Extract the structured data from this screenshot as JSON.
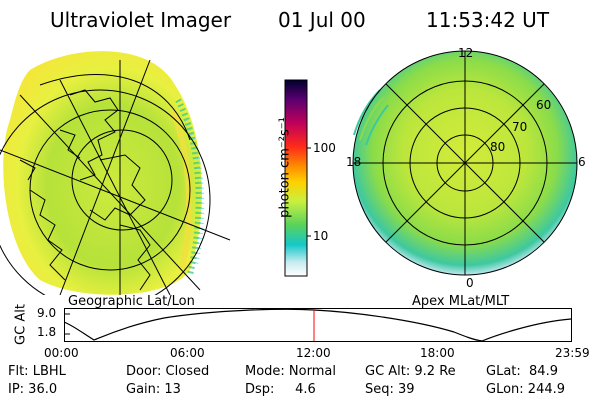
{
  "header": {
    "title": "Ultraviolet Imager",
    "date": "01 Jul 00",
    "time": "11:53:42 UT"
  },
  "left_panel": {
    "caption": "Geographic Lat/Lon"
  },
  "right_panel": {
    "caption": "Apex MLat/MLT",
    "mlt_labels": {
      "top": "12",
      "left": "18",
      "right": "6",
      "bottom": "0"
    },
    "lat_labels": [
      "60",
      "70",
      "80"
    ]
  },
  "colorbar": {
    "unit_label": "photon cm⁻²s⁻¹",
    "ticks": [
      "100",
      "10"
    ],
    "scale": "log",
    "colors": [
      "#000030",
      "#5a0070",
      "#c0005a",
      "#ff2a1a",
      "#ff8c00",
      "#ffd000",
      "#c8f040",
      "#5ad25a",
      "#14c8c8",
      "#c8ecf0",
      "#ffffff"
    ]
  },
  "altitude_plot": {
    "ylabel": "GC Alt",
    "yticks": [
      "9.0",
      "1.8"
    ],
    "xticks": [
      "00:00",
      "06:00",
      "12:00",
      "18:00",
      "23:59"
    ],
    "current_time_marker_color": "#ff0000"
  },
  "status": {
    "row1": {
      "flt": "Flt: LBHL",
      "door": "Door: Closed",
      "mode": "Mode: Normal",
      "gcalt": "GC Alt: 9.2 Re",
      "glat": "GLat:  84.9"
    },
    "row2": {
      "ip": "IP: 36.0",
      "gain": "Gain: 13",
      "dsp": "Dsp:     4.6",
      "seq": "Seq: 39",
      "glon": "GLon: 244.9"
    }
  }
}
